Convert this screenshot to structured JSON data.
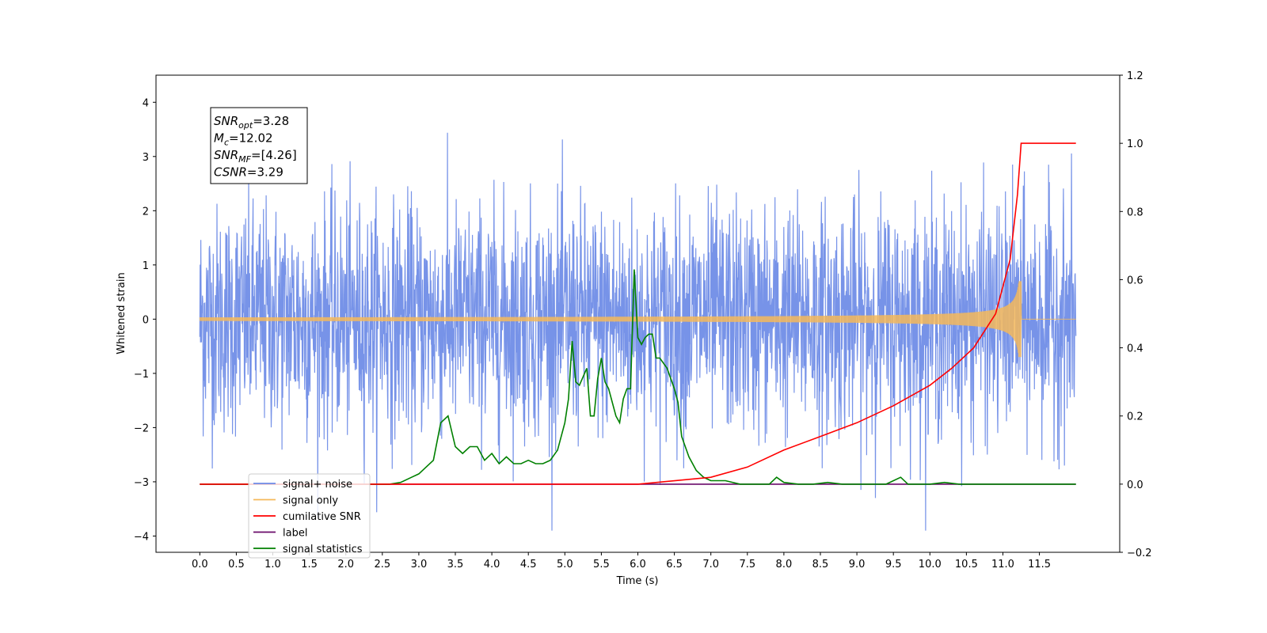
{
  "chart_data": {
    "type": "line",
    "xlabel": "Time (s)",
    "ylabel": "Whitened strain",
    "xlim": [
      -0.6,
      12.6
    ],
    "ylim": [
      -4.3,
      4.5
    ],
    "y2lim": [
      -0.2,
      1.2
    ],
    "x_ticks": [
      "0.0",
      "0.5",
      "1.0",
      "1.5",
      "2.0",
      "2.5",
      "3.0",
      "3.5",
      "4.0",
      "4.5",
      "5.0",
      "5.5",
      "6.0",
      "6.5",
      "7.0",
      "7.5",
      "8.0",
      "8.5",
      "9.0",
      "9.5",
      "10.0",
      "10.5",
      "11.0",
      "11.5"
    ],
    "y_ticks": [
      "4",
      "3",
      "2",
      "1",
      "0",
      "−1",
      "−2",
      "−3",
      "−4"
    ],
    "y2_ticks": [
      "1.2",
      "1.0",
      "0.8",
      "0.6",
      "0.4",
      "0.2",
      "0.0",
      "−0.2"
    ],
    "grid": false,
    "legend_position": "lower-left",
    "annotation": {
      "lines": [
        {
          "base": "SNR",
          "sub": "opt",
          "value": "=3.28"
        },
        {
          "base": "M",
          "sub": "c",
          "value": "=12.02"
        },
        {
          "base": "SNR",
          "sub": "MF",
          "value": "=[4.26]"
        },
        {
          "base": "CSNR",
          "sub": "",
          "value": "=3.29"
        }
      ]
    },
    "series": [
      {
        "name": "signal+ noise",
        "color": "#6b8ae6",
        "axis": "left",
        "x_range": [
          0,
          12.0
        ],
        "amplitude_typical": 2.3,
        "amplitude_peak": 4.13
      },
      {
        "name": "signal only",
        "color": "#f5b95a",
        "axis": "left",
        "x_range": [
          0,
          12.0
        ],
        "chirp_end": 11.25,
        "peak": 0.7
      },
      {
        "name": "cumilative SNR",
        "color": "#ff0000",
        "axis": "right",
        "x": [
          0,
          6.0,
          7.0,
          7.5,
          8.0,
          8.5,
          9.0,
          9.5,
          10.0,
          10.3,
          10.6,
          10.9,
          11.1,
          11.2,
          11.25,
          12.0
        ],
        "values": [
          0,
          0,
          0.02,
          0.05,
          0.1,
          0.14,
          0.18,
          0.23,
          0.29,
          0.34,
          0.4,
          0.5,
          0.66,
          0.85,
          1.0,
          1.0
        ]
      },
      {
        "name": "label",
        "color": "#6a0a6a",
        "axis": "right",
        "x": [
          0,
          12.0
        ],
        "values": [
          0,
          0
        ]
      },
      {
        "name": "signal statistics",
        "color": "#008000",
        "axis": "right",
        "x": [
          0,
          2.6,
          2.75,
          2.9,
          3.0,
          3.1,
          3.2,
          3.3,
          3.4,
          3.5,
          3.6,
          3.7,
          3.8,
          3.9,
          4.0,
          4.1,
          4.2,
          4.3,
          4.4,
          4.5,
          4.6,
          4.7,
          4.8,
          4.9,
          5.0,
          5.05,
          5.1,
          5.15,
          5.2,
          5.3,
          5.35,
          5.4,
          5.45,
          5.5,
          5.55,
          5.6,
          5.7,
          5.75,
          5.8,
          5.85,
          5.9,
          5.95,
          6.0,
          6.05,
          6.1,
          6.15,
          6.2,
          6.25,
          6.3,
          6.4,
          6.5,
          6.55,
          6.6,
          6.7,
          6.8,
          6.9,
          7.0,
          7.2,
          7.4,
          7.6,
          7.8,
          7.9,
          8.0,
          8.2,
          8.4,
          8.6,
          8.8,
          9.0,
          9.2,
          9.4,
          9.6,
          9.7,
          9.8,
          10.0,
          10.2,
          10.4,
          10.6,
          11.0,
          11.4,
          11.6,
          12.0
        ],
        "values": [
          0,
          0,
          0.005,
          0.02,
          0.03,
          0.05,
          0.07,
          0.18,
          0.2,
          0.11,
          0.09,
          0.11,
          0.11,
          0.07,
          0.09,
          0.06,
          0.08,
          0.06,
          0.06,
          0.07,
          0.06,
          0.06,
          0.07,
          0.1,
          0.18,
          0.25,
          0.42,
          0.3,
          0.29,
          0.34,
          0.2,
          0.2,
          0.31,
          0.37,
          0.3,
          0.28,
          0.2,
          0.18,
          0.25,
          0.28,
          0.28,
          0.63,
          0.43,
          0.41,
          0.43,
          0.44,
          0.44,
          0.37,
          0.37,
          0.34,
          0.28,
          0.24,
          0.14,
          0.08,
          0.04,
          0.02,
          0.01,
          0.01,
          0.0,
          0.0,
          0.0,
          0.02,
          0.005,
          0.0,
          0.0,
          0.005,
          0.0,
          0.0,
          0.0,
          0.0,
          0.02,
          0.0,
          0.0,
          0.0,
          0.005,
          0.0,
          0.0,
          0.0,
          0.0,
          0.0,
          0.0
        ]
      }
    ]
  }
}
